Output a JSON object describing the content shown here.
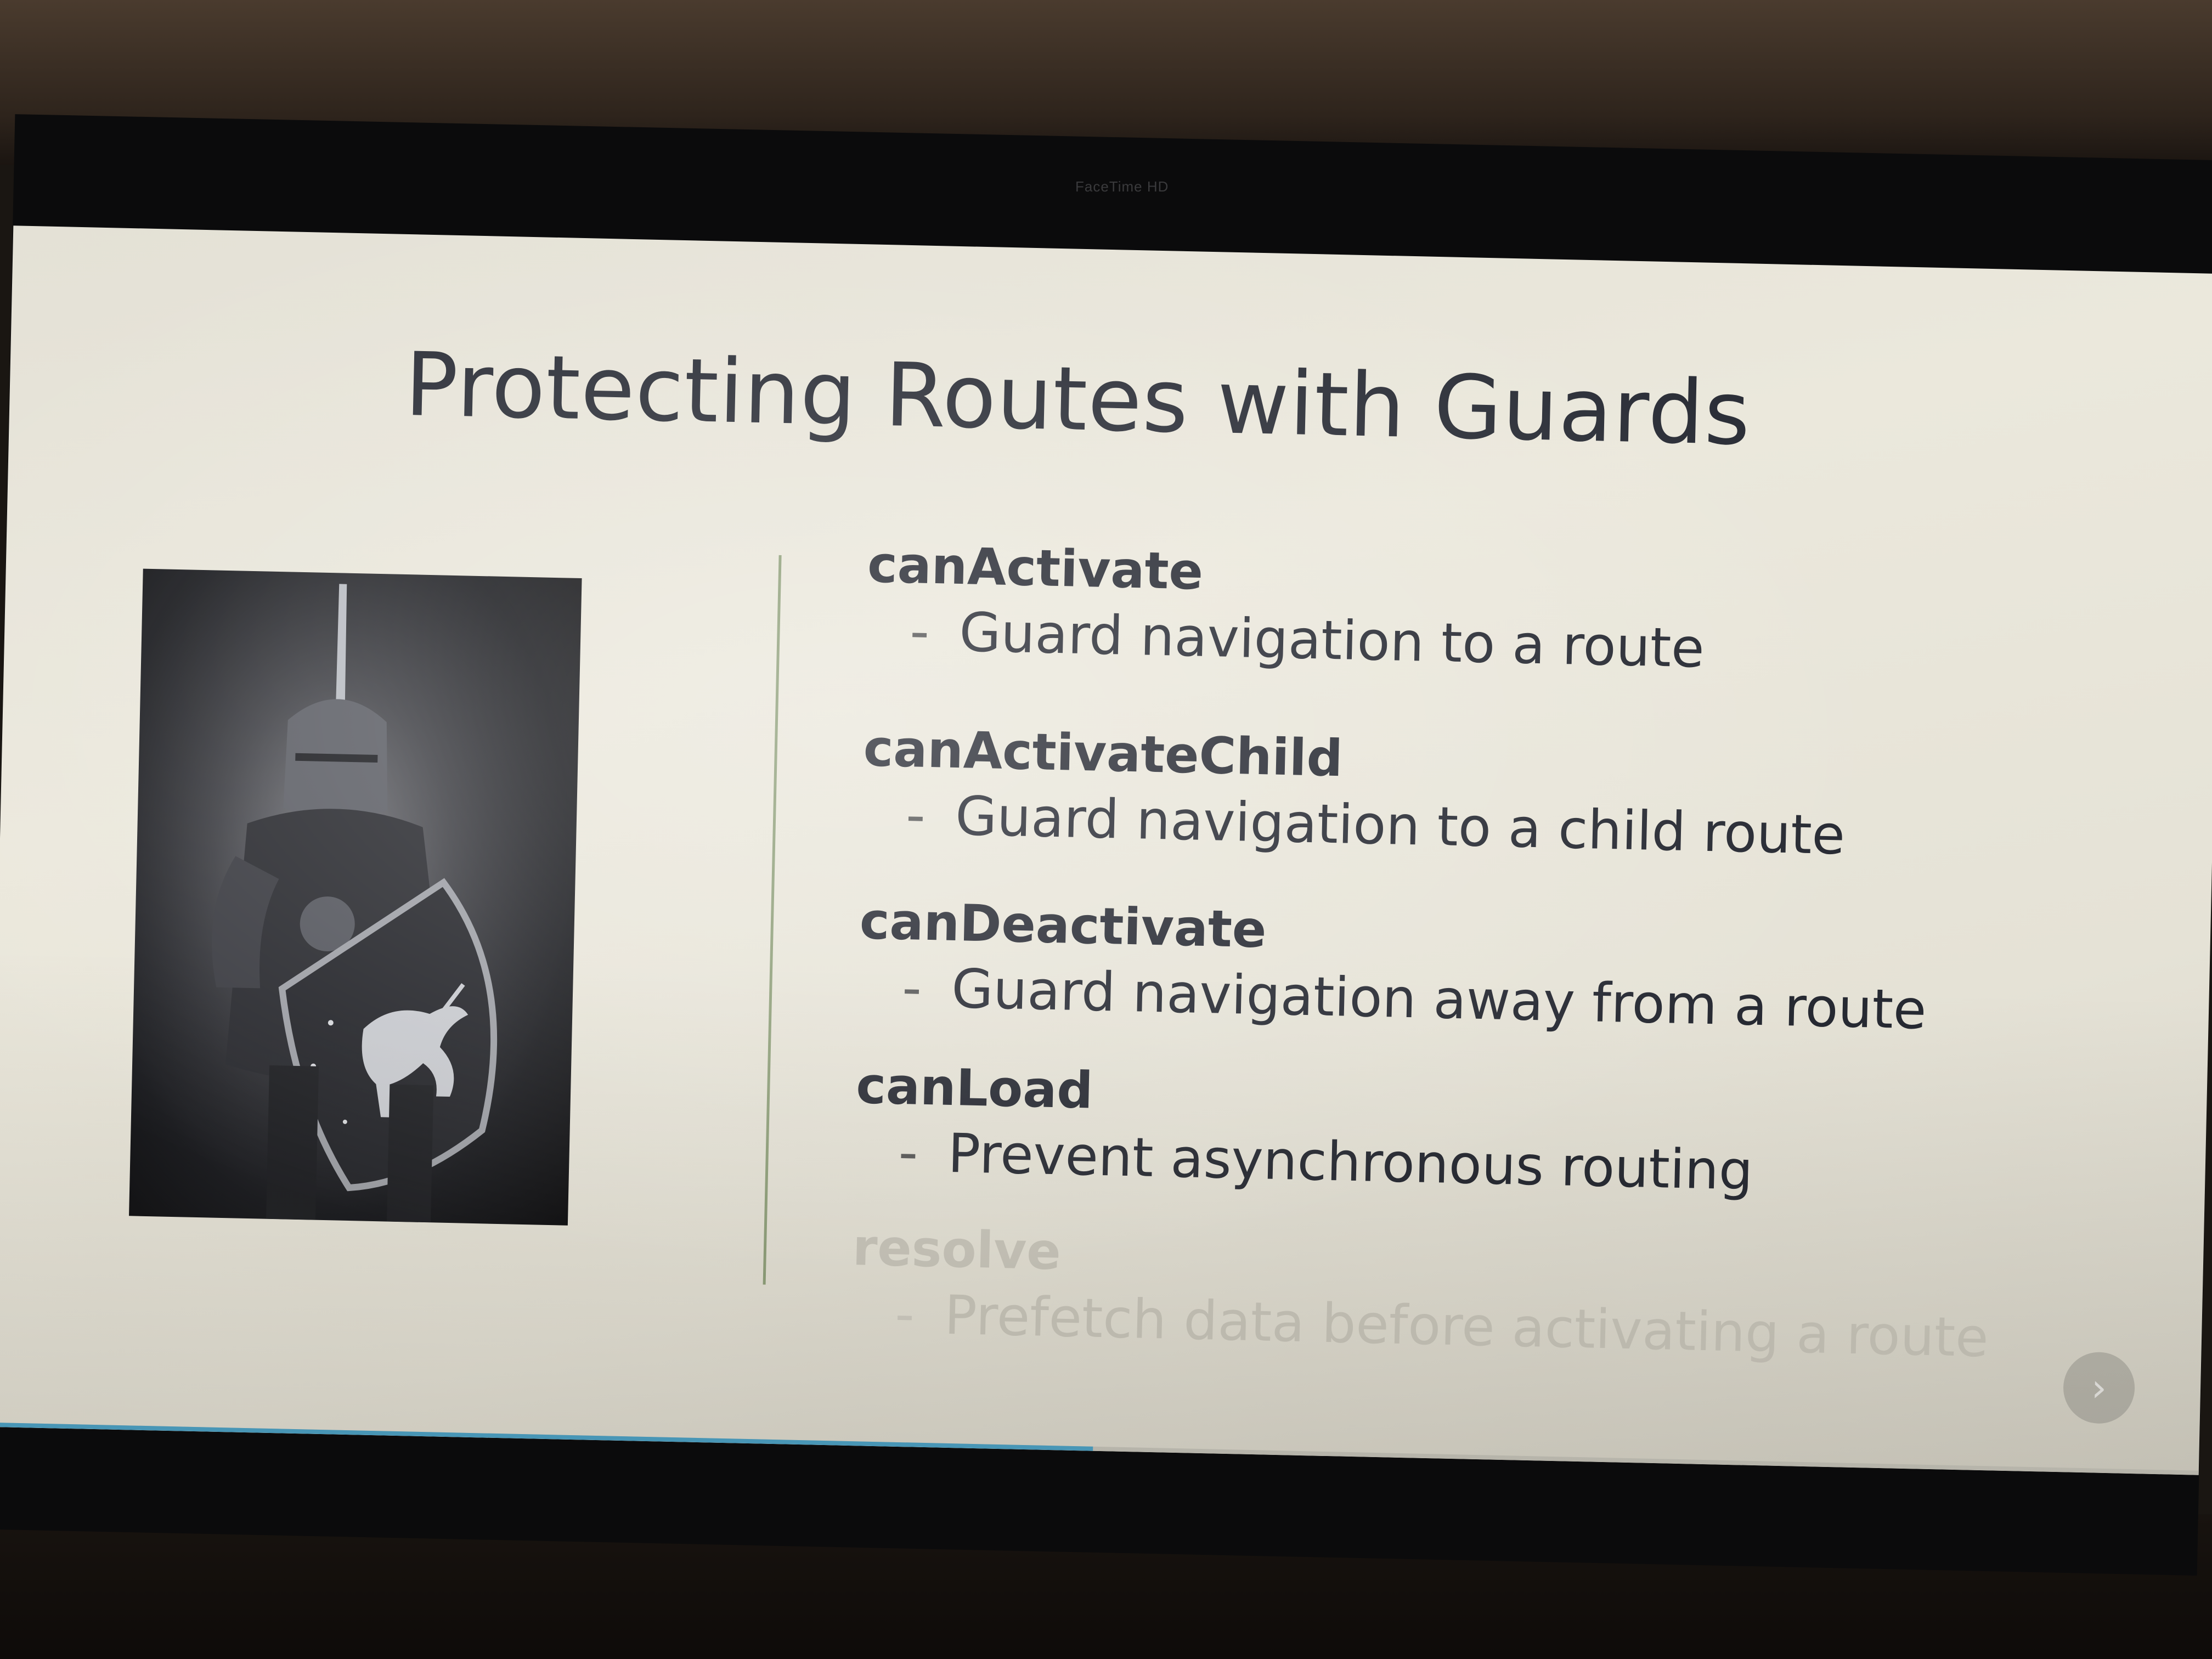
{
  "monitor": {
    "camera_label": "FaceTime HD"
  },
  "slide": {
    "title": "Protecting Routes with Guards",
    "image_icon": "knight-with-shield-icon",
    "guards": [
      {
        "name": "canActivate",
        "bullet": "-",
        "description": "Guard navigation to a route",
        "faded": false
      },
      {
        "name": "canActivateChild",
        "bullet": "-",
        "description": "Guard navigation to a child route",
        "faded": false
      },
      {
        "name": "canDeactivate",
        "bullet": "-",
        "description": "Guard navigation away from a route",
        "faded": false
      },
      {
        "name": "canLoad",
        "bullet": "-",
        "description": "Prevent asynchronous routing",
        "faded": false
      },
      {
        "name": "resolve",
        "bullet": "-",
        "description": "Prefetch data before activating a route",
        "faded": true
      }
    ]
  },
  "player": {
    "next_icon": "chevron-right-icon",
    "next_glyph": "›",
    "progress_fraction": 0.5
  },
  "colors": {
    "slide_background": "#ebe8dc",
    "title_text": "#2c2f38",
    "divider": "#8fa07a",
    "progress_accent": "#4aa3c9"
  }
}
